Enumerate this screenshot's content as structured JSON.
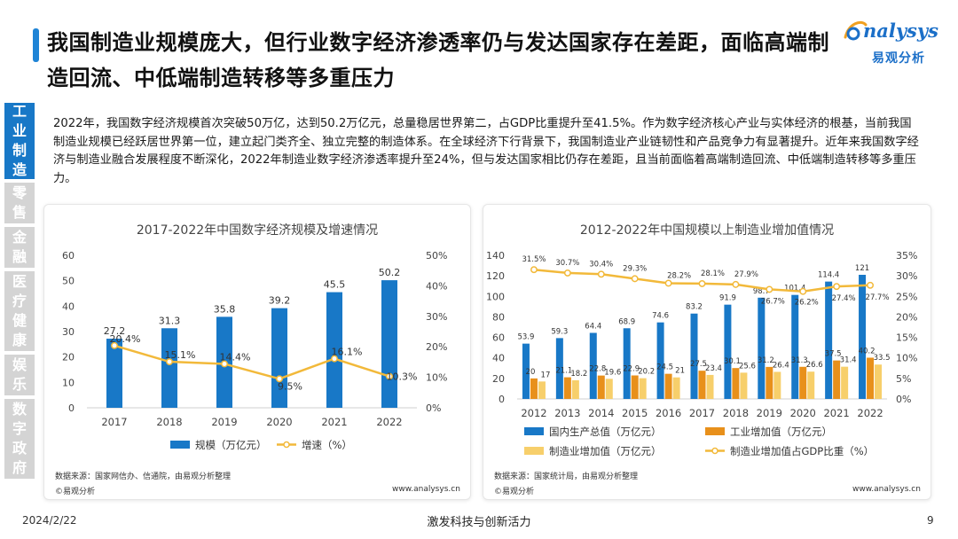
{
  "title": "我国制造业规模庞大，但行业数字经济渗透率仍与发达国家存在差距，面临高端制造回流、中低端制造转移等多重压力",
  "logo": {
    "en": "nalysys",
    "cn": "易观分析"
  },
  "sidebar": [
    {
      "label": "工业制造",
      "active": true
    },
    {
      "label": "零售",
      "active": false
    },
    {
      "label": "金融",
      "active": false
    },
    {
      "label": "医疗健康",
      "active": false
    },
    {
      "label": "娱乐",
      "active": false
    },
    {
      "label": "数字政府",
      "active": false
    }
  ],
  "intro": "2022年，我国数字经济规模首次突破50万亿，达到50.2万亿元，总量稳居世界第二，占GDP比重提升至41.5%。作为数字经济核心产业与实体经济的根基，当前我国制造业规模已经跃居世界第一位，建立起门类齐全、独立完整的制造体系。在全球经济下行背景下，我国制造业产业链韧性和产品竞争力有显著提升。近年来我国数字经济与制造业融合发展程度不断深化，2022年制造业数字经济渗透率提升至24%，但与发达国家相比仍存在差距，且当前面临着高端制造回流、中低端制造转移等多重压力。",
  "footer": {
    "date": "2024/2/22",
    "slogan": "激发科技与创新活力",
    "page": "9"
  },
  "chart_data": [
    {
      "type": "bar",
      "title": "2017-2022年中国数字经济规模及增速情况",
      "categories": [
        "2017",
        "2018",
        "2019",
        "2020",
        "2021",
        "2022"
      ],
      "series": [
        {
          "name": "规模（万亿元）",
          "type": "bar",
          "axis": "left",
          "color": "#1878c7",
          "values": [
            27.2,
            31.3,
            35.8,
            39.2,
            45.5,
            50.2
          ],
          "labels": [
            "27.2",
            "31.3",
            "35.8",
            "39.2",
            "45.5",
            "50.2"
          ]
        },
        {
          "name": "增速（%）",
          "type": "line",
          "axis": "right",
          "color": "#f2b93a",
          "values": [
            20.4,
            15.1,
            14.4,
            9.5,
            16.1,
            10.3
          ],
          "labels": [
            "20.4%",
            "15.1%",
            "14.4%",
            "9.5%",
            "16.1%",
            "10.3%"
          ]
        }
      ],
      "y_left": {
        "min": 0,
        "max": 60,
        "ticks": [
          "0",
          "10",
          "20",
          "30",
          "40",
          "50",
          "60"
        ]
      },
      "y_right": {
        "min": 0,
        "max": 50,
        "ticks": [
          "0%",
          "10%",
          "20%",
          "30%",
          "40%",
          "50%"
        ]
      },
      "grid": false,
      "legend_position": "bottom",
      "source": "数据来源：国家网信办、信通院，由易观分析整理",
      "watermark": "©易观分析",
      "site": "www.analysys.cn"
    },
    {
      "type": "bar",
      "title": "2012-2022年中国规模以上制造业增加值情况",
      "categories": [
        "2012",
        "2013",
        "2014",
        "2015",
        "2016",
        "2017",
        "2018",
        "2019",
        "2020",
        "2021",
        "2022"
      ],
      "series": [
        {
          "name": "国内生产总值（万亿元）",
          "type": "bar",
          "axis": "left",
          "color": "#1878c7",
          "values": [
            53.9,
            59.3,
            64.4,
            68.9,
            74.6,
            83.2,
            91.9,
            98.7,
            101.4,
            114.4,
            121
          ],
          "labels": [
            "53.9",
            "59.3",
            "64.4",
            "68.9",
            "74.6",
            "83.2",
            "91.9",
            "98.7",
            "101.4",
            "114.4",
            "121"
          ]
        },
        {
          "name": "工业增加值（万亿元）",
          "type": "bar",
          "axis": "left",
          "color": "#e8901b",
          "values": [
            20,
            21.1,
            22.8,
            22.9,
            24.5,
            27.5,
            30.1,
            31.2,
            31.3,
            37.5,
            40.2
          ],
          "labels": [
            "20",
            "21.1",
            "22.8",
            "22.9",
            "24.5",
            "27.5",
            "30.1",
            "31.2",
            "31.3",
            "37.5",
            "40.2"
          ]
        },
        {
          "name": "制造业增加值（万亿元）",
          "type": "bar",
          "axis": "left",
          "color": "#f7cf6b",
          "values": [
            17,
            18.2,
            19.6,
            20.2,
            21,
            23.4,
            25.6,
            26.4,
            26.6,
            31.4,
            33.5
          ],
          "labels": [
            "17",
            "18.2",
            "19.6",
            "20.2",
            "21",
            "23.4",
            "25.6",
            "26.4",
            "26.6",
            "31.4",
            "33.5"
          ]
        },
        {
          "name": "制造业增加值占GDP比重（%）",
          "type": "line",
          "axis": "right",
          "color": "#f2b93a",
          "values": [
            31.5,
            30.7,
            30.4,
            29.3,
            28.2,
            28.1,
            27.9,
            26.7,
            26.2,
            27.4,
            27.7
          ],
          "labels": [
            "31.5%",
            "30.7%",
            "30.4%",
            "29.3%",
            "28.2%",
            "28.1%",
            "27.9%",
            "26.7%",
            "26.2%",
            "27.4%",
            "27.7%"
          ]
        }
      ],
      "y_left": {
        "min": 0,
        "max": 140,
        "ticks": [
          "0",
          "20",
          "40",
          "60",
          "80",
          "100",
          "120",
          "140"
        ]
      },
      "y_right": {
        "min": 0,
        "max": 35,
        "ticks": [
          "0%",
          "5%",
          "10%",
          "15%",
          "20%",
          "25%",
          "30%",
          "35%"
        ]
      },
      "grid": false,
      "legend_position": "bottom",
      "source": "数据来源：国家统计局，由易观分析整理",
      "watermark": "©易观分析",
      "site": "www.analysys.cn"
    }
  ]
}
